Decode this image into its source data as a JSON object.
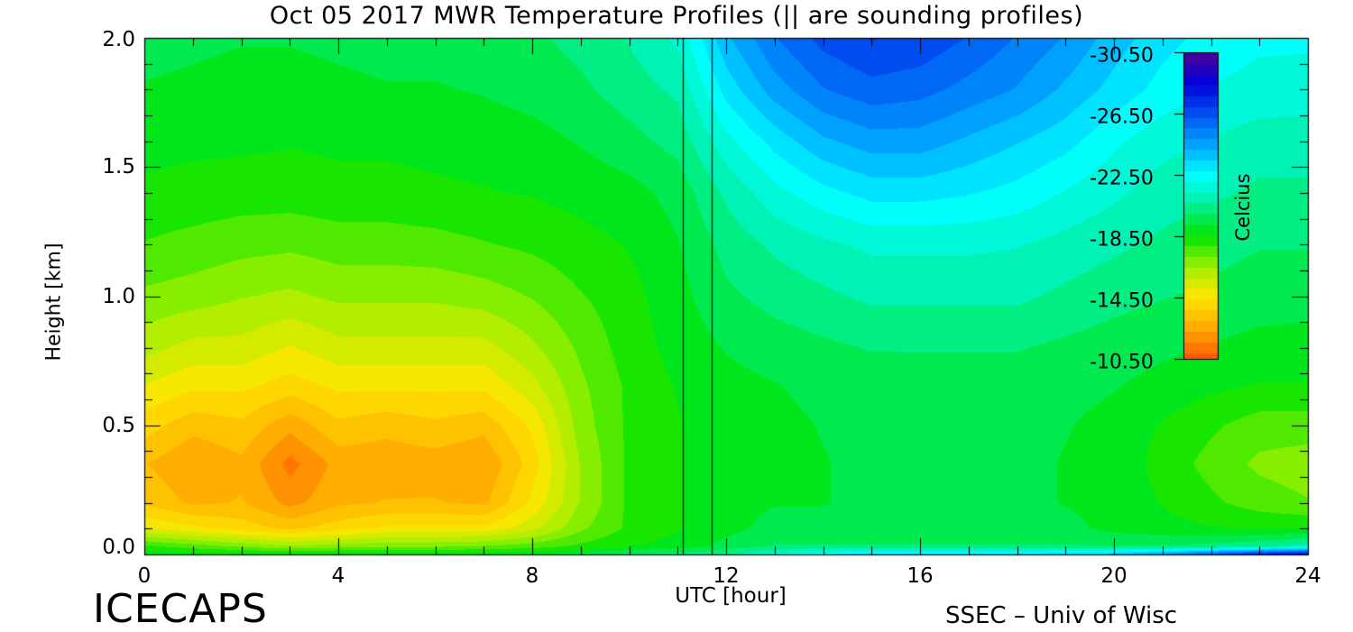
{
  "chart_data": {
    "type": "heatmap",
    "title": "Oct 05 2017 MWR Temperature Profiles (|| are sounding profiles)",
    "xlabel": "UTC [hour]",
    "ylabel": "Height [km]",
    "xlim": [
      0,
      24
    ],
    "ylim": [
      0,
      2.0
    ],
    "xticks": [
      0,
      4,
      8,
      12,
      16,
      20,
      24
    ],
    "xtick_labels": [
      "0",
      "4",
      "8",
      "12",
      "16",
      "20",
      "24"
    ],
    "yticks": [
      0.0,
      0.5,
      1.0,
      1.5,
      2.0
    ],
    "ytick_labels": [
      "0.0",
      "0.5",
      "1.0",
      "1.5",
      "2.0"
    ],
    "sounding_times_utc": [
      11.1,
      11.7
    ],
    "colorbar": {
      "label": "Celcius",
      "range": [
        -30.5,
        -10.5
      ],
      "ticks": [
        -10.5,
        -14.5,
        -18.5,
        -22.5,
        -26.5,
        -30.5
      ],
      "tick_labels": [
        "-10.50",
        "-14.50",
        "-18.50",
        "-22.50",
        "-26.50",
        "-30.50"
      ],
      "stops": [
        {
          "value": -10.5,
          "color": "#ff5a00"
        },
        {
          "value": -12.5,
          "color": "#ffaa00"
        },
        {
          "value": -14.5,
          "color": "#ffe600"
        },
        {
          "value": -16.5,
          "color": "#a0f000"
        },
        {
          "value": -18.5,
          "color": "#00e400"
        },
        {
          "value": -21.0,
          "color": "#00f2b4"
        },
        {
          "value": -22.5,
          "color": "#00ffff"
        },
        {
          "value": -24.5,
          "color": "#00a0ff"
        },
        {
          "value": -26.5,
          "color": "#0050f0"
        },
        {
          "value": -28.5,
          "color": "#0000dc"
        },
        {
          "value": -30.5,
          "color": "#500096"
        }
      ]
    },
    "x_hours": [
      0,
      1,
      2,
      3,
      4,
      5,
      6,
      7,
      8,
      9,
      10,
      11,
      12,
      13,
      14,
      15,
      16,
      17,
      18,
      19,
      20,
      21,
      22,
      23,
      24
    ],
    "heights_km": [
      0.0,
      0.03,
      0.1,
      0.2,
      0.35,
      0.5,
      0.65,
      0.8,
      1.0,
      1.2,
      1.4,
      1.6,
      1.8,
      2.0
    ],
    "temperature_c": [
      [
        -19.0,
        -18.8,
        -18.8,
        -18.6,
        -18.8,
        -18.8,
        -18.8,
        -18.9,
        -19.0,
        -19.5,
        -20.0,
        -20.2,
        -20.5,
        -21.5,
        -22.5,
        -23.0,
        -23.0,
        -23.0,
        -23.0,
        -23.2,
        -23.5,
        -24.5,
        -26.0,
        -27.5,
        -28.5
      ],
      [
        -18.0,
        -17.5,
        -17.0,
        -16.5,
        -16.8,
        -17.0,
        -17.0,
        -17.2,
        -17.5,
        -18.0,
        -18.5,
        -18.8,
        -19.5,
        -20.0,
        -20.0,
        -20.0,
        -20.0,
        -20.0,
        -20.0,
        -20.0,
        -20.0,
        -20.0,
        -20.2,
        -20.5,
        -21.0
      ],
      [
        -15.0,
        -14.5,
        -14.0,
        -13.5,
        -14.0,
        -14.5,
        -14.5,
        -14.5,
        -15.5,
        -17.0,
        -18.0,
        -18.5,
        -19.0,
        -19.5,
        -19.5,
        -19.5,
        -19.5,
        -19.5,
        -19.5,
        -19.5,
        -19.0,
        -18.8,
        -18.6,
        -18.5,
        -18.5
      ],
      [
        -13.5,
        -12.8,
        -13.0,
        -12.0,
        -12.8,
        -13.0,
        -13.0,
        -12.8,
        -14.5,
        -16.5,
        -18.0,
        -18.5,
        -19.0,
        -19.2,
        -19.2,
        -19.5,
        -19.5,
        -19.5,
        -19.5,
        -19.2,
        -19.0,
        -18.5,
        -18.0,
        -17.5,
        -17.2
      ],
      [
        -13.0,
        -12.3,
        -12.8,
        -11.3,
        -12.5,
        -12.5,
        -12.6,
        -12.3,
        -14.0,
        -16.5,
        -18.0,
        -18.5,
        -19.0,
        -19.0,
        -19.2,
        -19.5,
        -19.5,
        -19.5,
        -19.5,
        -19.2,
        -19.0,
        -18.3,
        -17.6,
        -17.0,
        -16.8
      ],
      [
        -14.0,
        -13.2,
        -13.5,
        -12.5,
        -13.5,
        -13.2,
        -13.5,
        -13.2,
        -14.5,
        -16.8,
        -18.0,
        -18.5,
        -19.0,
        -19.0,
        -19.3,
        -19.5,
        -19.5,
        -19.5,
        -19.5,
        -19.3,
        -19.0,
        -18.5,
        -18.0,
        -17.5,
        -17.5
      ],
      [
        -15.0,
        -14.5,
        -14.5,
        -14.0,
        -14.5,
        -14.5,
        -14.5,
        -14.5,
        -15.5,
        -17.0,
        -18.0,
        -18.6,
        -19.0,
        -19.2,
        -19.5,
        -19.5,
        -19.6,
        -19.6,
        -19.6,
        -19.5,
        -19.3,
        -19.0,
        -18.7,
        -18.5,
        -18.5
      ],
      [
        -16.0,
        -15.5,
        -15.5,
        -15.0,
        -15.5,
        -15.5,
        -15.5,
        -15.5,
        -16.3,
        -17.3,
        -18.2,
        -18.8,
        -19.3,
        -19.6,
        -19.8,
        -20.0,
        -20.0,
        -20.0,
        -20.0,
        -19.8,
        -19.6,
        -19.4,
        -19.2,
        -19.0,
        -19.0
      ],
      [
        -17.0,
        -16.8,
        -16.5,
        -16.3,
        -16.6,
        -16.6,
        -16.6,
        -16.8,
        -17.2,
        -17.8,
        -18.3,
        -19.0,
        -19.8,
        -20.2,
        -20.5,
        -20.8,
        -20.8,
        -20.8,
        -20.8,
        -20.5,
        -20.2,
        -20.0,
        -19.8,
        -19.6,
        -19.5
      ],
      [
        -17.8,
        -17.6,
        -17.4,
        -17.3,
        -17.5,
        -17.5,
        -17.6,
        -17.8,
        -18.0,
        -18.3,
        -18.6,
        -19.2,
        -20.2,
        -20.8,
        -21.2,
        -21.5,
        -21.5,
        -21.5,
        -21.4,
        -21.1,
        -20.8,
        -20.5,
        -20.2,
        -20.0,
        -20.0
      ],
      [
        -18.4,
        -18.3,
        -18.2,
        -18.2,
        -18.3,
        -18.3,
        -18.4,
        -18.5,
        -18.6,
        -18.8,
        -19.0,
        -19.5,
        -20.8,
        -21.8,
        -22.5,
        -23.0,
        -23.0,
        -22.8,
        -22.5,
        -22.0,
        -21.5,
        -21.0,
        -20.8,
        -20.5,
        -20.5
      ],
      [
        -18.8,
        -18.7,
        -18.7,
        -18.6,
        -18.7,
        -18.7,
        -18.8,
        -18.9,
        -19.0,
        -19.3,
        -19.7,
        -20.2,
        -21.8,
        -23.0,
        -24.0,
        -24.5,
        -24.5,
        -24.0,
        -23.5,
        -23.0,
        -22.2,
        -21.6,
        -21.3,
        -21.0,
        -21.0
      ],
      [
        -19.2,
        -19.1,
        -19.0,
        -19.0,
        -19.1,
        -19.2,
        -19.2,
        -19.3,
        -19.5,
        -19.8,
        -20.3,
        -20.8,
        -23.0,
        -24.5,
        -25.5,
        -26.0,
        -25.8,
        -25.3,
        -24.8,
        -24.0,
        -23.2,
        -22.5,
        -22.0,
        -21.8,
        -21.7
      ],
      [
        -19.5,
        -19.4,
        -19.3,
        -19.3,
        -19.4,
        -19.5,
        -19.5,
        -19.6,
        -19.8,
        -20.2,
        -20.7,
        -21.5,
        -24.0,
        -25.5,
        -26.5,
        -27.0,
        -26.8,
        -26.2,
        -25.5,
        -24.8,
        -23.8,
        -23.0,
        -22.5,
        -22.2,
        -22.2
      ]
    ]
  }
}
